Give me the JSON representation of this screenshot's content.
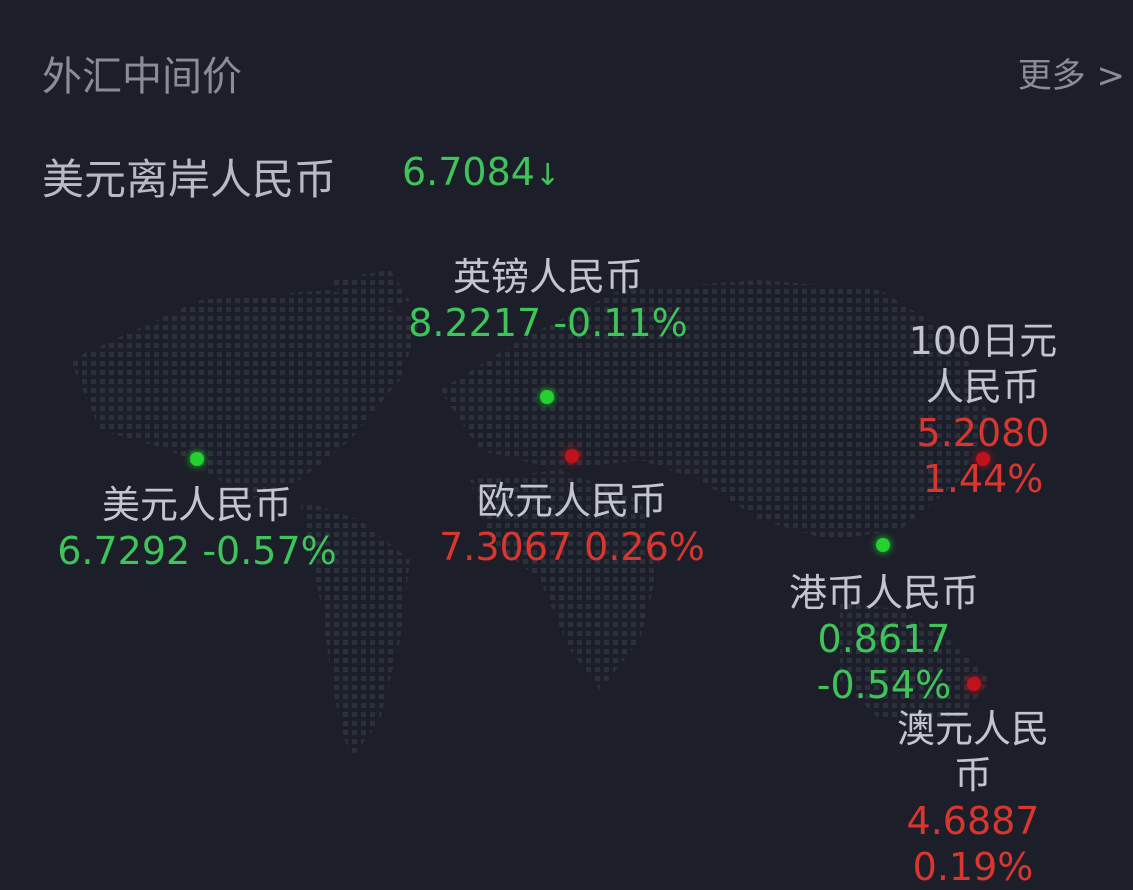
{
  "header": {
    "title": "外汇中间价",
    "more_label": "更多",
    "more_icon": "chevron-right-icon"
  },
  "headline": {
    "label": "美元离岸人民币",
    "value": "6.7084",
    "direction_icon": "arrow-down-icon"
  },
  "colors": {
    "up": "#d8362e",
    "down": "#3fc45a",
    "background": "#1c1f29"
  },
  "pairs": [
    {
      "name": "英镑人民币",
      "price": "8.2217",
      "change": "-0.11%",
      "trend": "down"
    },
    {
      "name": "100日元人民币",
      "price": "5.2080",
      "change": "1.44%",
      "trend": "up"
    },
    {
      "name": "美元人民币",
      "price": "6.7292",
      "change": "-0.57%",
      "trend": "down"
    },
    {
      "name": "欧元人民币",
      "price": "7.3067",
      "change": "0.26%",
      "trend": "up"
    },
    {
      "name": "港币人民币",
      "price": "0.8617",
      "change": "-0.54%",
      "trend": "down"
    },
    {
      "name": "澳元人民币",
      "price": "4.6887",
      "change": "0.19%",
      "trend": "up"
    }
  ]
}
